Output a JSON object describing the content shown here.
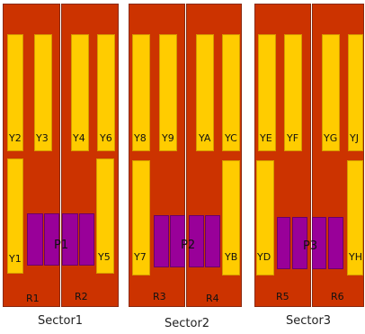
{
  "colors": {
    "rack": "#cc3300",
    "slot": "#ffcc00",
    "panel": "#990099",
    "background": "#ffffff"
  },
  "sectors": [
    {
      "label": "Sector1",
      "racks": [
        {
          "label": "R1",
          "top_slots": [
            "Y2",
            "Y3"
          ],
          "bottom_slots": [
            "Y1"
          ]
        },
        {
          "label": "R2",
          "top_slots": [
            "Y4",
            "Y6"
          ],
          "bottom_slots": [
            "Y5"
          ]
        }
      ],
      "panel": "P1"
    },
    {
      "label": "Sector2",
      "racks": [
        {
          "label": "R3",
          "top_slots": [
            "Y8",
            "Y9"
          ],
          "bottom_slots": [
            "Y7"
          ]
        },
        {
          "label": "R4",
          "top_slots": [
            "YA",
            "YC"
          ],
          "bottom_slots": [
            "YB"
          ]
        }
      ],
      "panel": "P2"
    },
    {
      "label": "Sector3",
      "racks": [
        {
          "label": "R5",
          "top_slots": [
            "YE",
            "YF"
          ],
          "bottom_slots": [
            "YD"
          ]
        },
        {
          "label": "R6",
          "top_slots": [
            "YG",
            "YJ"
          ],
          "bottom_slots": [
            "YH"
          ]
        }
      ],
      "panel": "P3"
    }
  ]
}
